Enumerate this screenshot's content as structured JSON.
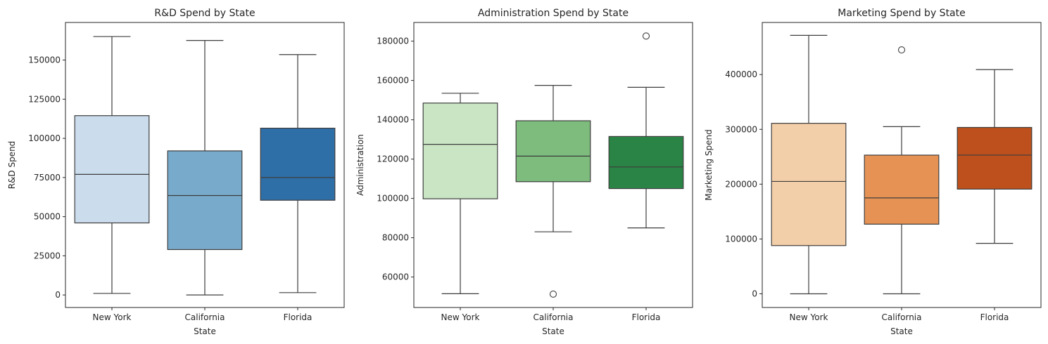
{
  "chart_data": [
    {
      "type": "box",
      "title": "R&D Spend by State",
      "xlabel": "State",
      "ylabel": "R&D Spend",
      "categories": [
        "New York",
        "California",
        "Florida"
      ],
      "ylim": [
        -8000,
        174000
      ],
      "yticks": [
        0,
        25000,
        50000,
        75000,
        100000,
        125000,
        150000
      ],
      "ytick_labels": [
        "0",
        "25000",
        "50000",
        "75000",
        100000,
        "125000",
        "150000"
      ],
      "colors": [
        "#cbdcec",
        "#78abcb",
        "#2f6fa8"
      ],
      "boxes": [
        {
          "min": 1000,
          "q1": 46000,
          "median": 77000,
          "q3": 114500,
          "max": 165000,
          "outliers": []
        },
        {
          "min": 0,
          "q1": 29000,
          "median": 63500,
          "q3": 92000,
          "max": 162500,
          "outliers": []
        },
        {
          "min": 1500,
          "q1": 60500,
          "median": 75000,
          "q3": 106500,
          "max": 153500,
          "outliers": []
        }
      ]
    },
    {
      "type": "box",
      "title": "Administration Spend by State",
      "xlabel": "State",
      "ylabel": "Administration",
      "categories": [
        "New York",
        "California",
        "Florida"
      ],
      "ylim": [
        44500,
        189500
      ],
      "yticks": [
        60000,
        80000,
        100000,
        120000,
        140000,
        160000,
        180000
      ],
      "ytick_labels": [
        "60000",
        "80000",
        "100000",
        "120000",
        "140000",
        "160000",
        "180000"
      ],
      "colors": [
        "#cae5c4",
        "#7dbc7c",
        "#2a8445"
      ],
      "boxes": [
        {
          "min": 51500,
          "q1": 99800,
          "median": 127500,
          "q3": 148500,
          "max": 153500,
          "outliers": []
        },
        {
          "min": 83000,
          "q1": 108500,
          "median": 121500,
          "q3": 139500,
          "max": 157500,
          "outliers": [
            51300
          ]
        },
        {
          "min": 85000,
          "q1": 105000,
          "median": 116000,
          "q3": 131500,
          "max": 156500,
          "outliers": [
            182600
          ]
        }
      ]
    },
    {
      "type": "box",
      "title": "Marketing Spend by State",
      "xlabel": "State",
      "ylabel": "Marketing Spend",
      "categories": [
        "New York",
        "California",
        "Florida"
      ],
      "ylim": [
        -25000,
        495000
      ],
      "yticks": [
        0,
        100000,
        200000,
        300000,
        400000
      ],
      "ytick_labels": [
        "0",
        "100000",
        "200000",
        "300000",
        "400000"
      ],
      "colors": [
        "#f3cfa9",
        "#e69255",
        "#bd501c"
      ],
      "boxes": [
        {
          "min": 0,
          "q1": 88000,
          "median": 205000,
          "q3": 311000,
          "max": 471500,
          "outliers": []
        },
        {
          "min": 0,
          "q1": 127000,
          "median": 175000,
          "q3": 253000,
          "max": 305000,
          "outliers": [
            445000
          ]
        },
        {
          "min": 92000,
          "q1": 191000,
          "median": 253000,
          "q3": 303500,
          "max": 409000,
          "outliers": []
        }
      ]
    }
  ]
}
